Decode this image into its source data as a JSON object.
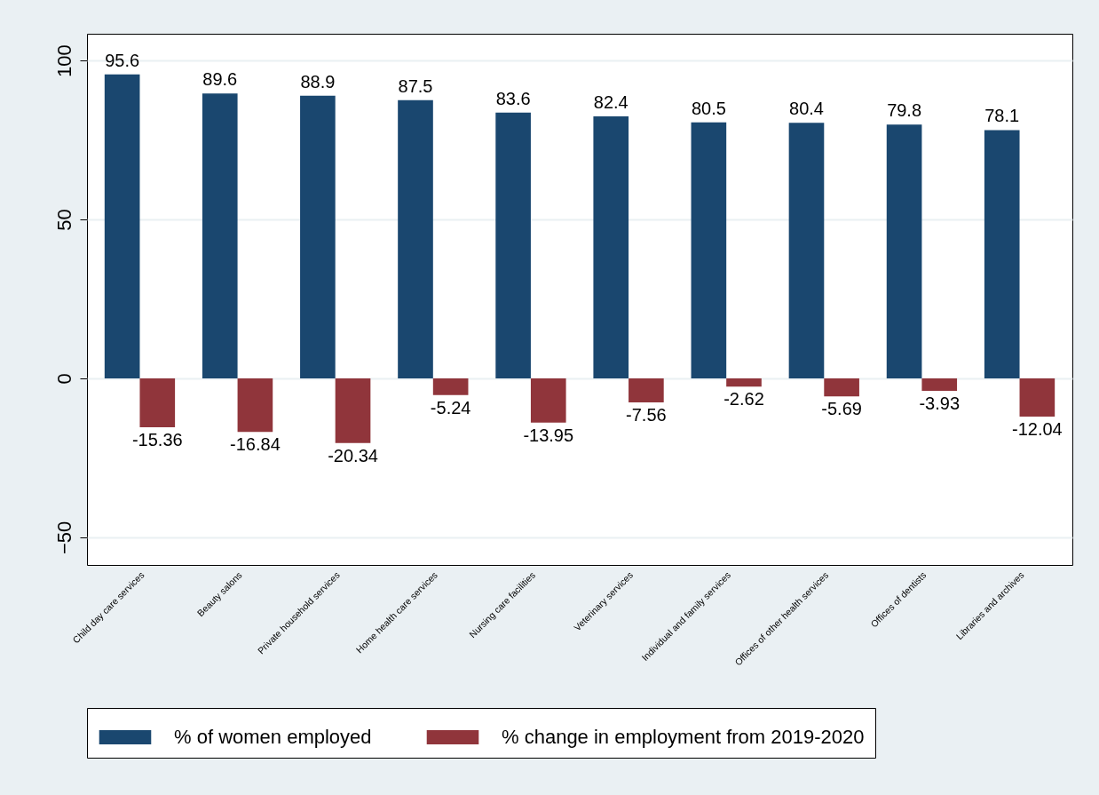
{
  "chart_data": {
    "type": "bar",
    "categories": [
      "Child day care services",
      "Beauty salons",
      "Private household services",
      "Home health care services",
      "Nursing care facilities",
      "Veterinary services",
      "Individual and family services",
      "Offices of other health services",
      "Offices of dentists",
      "Libraries and archives"
    ],
    "series": [
      {
        "name": "% of women employed",
        "color": "#1a476f",
        "values": [
          95.6,
          89.6,
          88.9,
          87.5,
          83.6,
          82.4,
          80.5,
          80.4,
          79.8,
          78.1
        ]
      },
      {
        "name": "% change in employment from 2019-2020",
        "color": "#90353b",
        "values": [
          -15.36,
          -16.84,
          -20.34,
          -5.24,
          -13.95,
          -7.56,
          -2.62,
          -5.69,
          -3.93,
          -12.04
        ]
      }
    ],
    "ylim": [
      -58.7,
      108.4
    ],
    "yticks": [
      -50,
      0,
      50,
      100
    ],
    "grid": "y",
    "legend": "bottom",
    "data_labels": true
  }
}
